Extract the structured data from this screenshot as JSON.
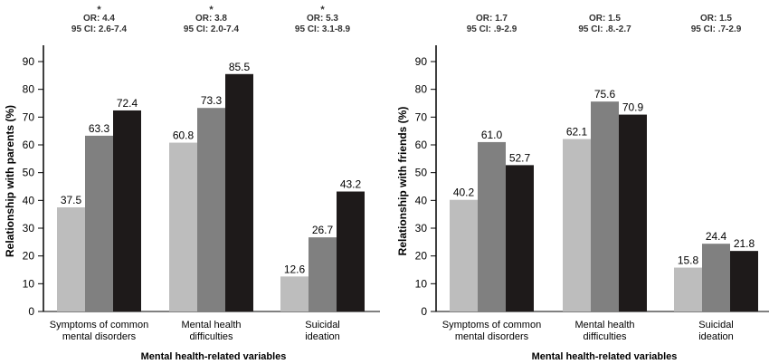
{
  "colors": {
    "low": "#bdbdbd",
    "mid": "#808080",
    "high": "#1e1a1a",
    "axis": "#000000"
  },
  "chart_data": [
    {
      "type": "bar",
      "ylabel": "Relationship with parents (%)",
      "xlabel": "Mental health-related variables",
      "ylim": [
        0,
        90
      ],
      "yticks": [
        0,
        10,
        20,
        30,
        40,
        50,
        60,
        70,
        80,
        90
      ],
      "grid": false,
      "categories": [
        [
          "Symptoms of common",
          "mental disorders"
        ],
        [
          "Mental health",
          "difficulties"
        ],
        [
          "Suicidal",
          "ideation"
        ]
      ],
      "annotations": [
        {
          "star": "*",
          "or": "OR: 4.4",
          "ci": "95 CI: 2.6-7.4"
        },
        {
          "star": "*",
          "or": "OR: 3.8",
          "ci": "95 CI: 2.0-7.4"
        },
        {
          "star": "*",
          "or": "OR: 5.3",
          "ci": "95 CI: 3.1-8.9"
        }
      ],
      "series": [
        {
          "values": [
            37.5,
            60.8,
            12.6
          ]
        },
        {
          "values": [
            63.3,
            73.3,
            26.7
          ]
        },
        {
          "values": [
            72.4,
            85.5,
            43.2
          ]
        }
      ]
    },
    {
      "type": "bar",
      "ylabel": "Relationship with friends (%)",
      "xlabel": "Mental health-related variables",
      "ylim": [
        0,
        90
      ],
      "yticks": [
        0,
        10,
        20,
        30,
        40,
        50,
        60,
        70,
        80,
        90
      ],
      "grid": false,
      "categories": [
        [
          "Symptoms of common",
          "mental disorders"
        ],
        [
          "Mental health",
          "difficulties"
        ],
        [
          "Suicidal",
          "ideation"
        ]
      ],
      "annotations": [
        {
          "star": "",
          "or": "OR: 1.7",
          "ci": "95 CI: .9-2.9"
        },
        {
          "star": "",
          "or": "OR: 1.5",
          "ci": "95 CI: .8.-2.7"
        },
        {
          "star": "",
          "or": "OR: 1.5",
          "ci": "95 CI: .7-2.9"
        }
      ],
      "series": [
        {
          "values": [
            40.2,
            62.1,
            15.8
          ]
        },
        {
          "values": [
            61.0,
            75.6,
            24.4
          ]
        },
        {
          "values": [
            52.7,
            70.9,
            21.8
          ]
        }
      ]
    }
  ]
}
